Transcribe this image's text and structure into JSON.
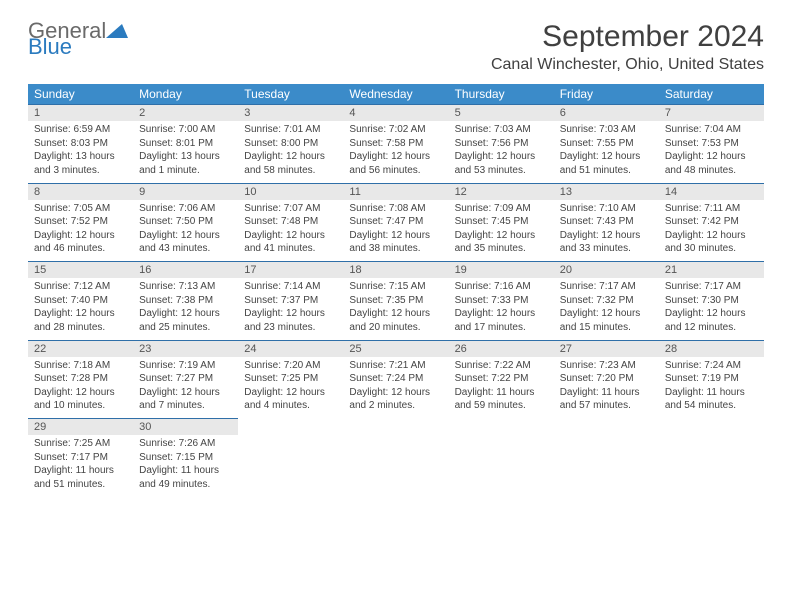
{
  "brand": {
    "part1": "General",
    "part2": "Blue"
  },
  "title": "September 2024",
  "location": "Canal Winchester, Ohio, United States",
  "header_bg": "#3b8bc9",
  "daynum_bg": "#e8e8e8",
  "border_color": "#2f6fa8",
  "weekdays": [
    "Sunday",
    "Monday",
    "Tuesday",
    "Wednesday",
    "Thursday",
    "Friday",
    "Saturday"
  ],
  "weeks": [
    [
      {
        "n": "1",
        "sr": "6:59 AM",
        "ss": "8:03 PM",
        "dl": "13 hours and 3 minutes."
      },
      {
        "n": "2",
        "sr": "7:00 AM",
        "ss": "8:01 PM",
        "dl": "13 hours and 1 minute."
      },
      {
        "n": "3",
        "sr": "7:01 AM",
        "ss": "8:00 PM",
        "dl": "12 hours and 58 minutes."
      },
      {
        "n": "4",
        "sr": "7:02 AM",
        "ss": "7:58 PM",
        "dl": "12 hours and 56 minutes."
      },
      {
        "n": "5",
        "sr": "7:03 AM",
        "ss": "7:56 PM",
        "dl": "12 hours and 53 minutes."
      },
      {
        "n": "6",
        "sr": "7:03 AM",
        "ss": "7:55 PM",
        "dl": "12 hours and 51 minutes."
      },
      {
        "n": "7",
        "sr": "7:04 AM",
        "ss": "7:53 PM",
        "dl": "12 hours and 48 minutes."
      }
    ],
    [
      {
        "n": "8",
        "sr": "7:05 AM",
        "ss": "7:52 PM",
        "dl": "12 hours and 46 minutes."
      },
      {
        "n": "9",
        "sr": "7:06 AM",
        "ss": "7:50 PM",
        "dl": "12 hours and 43 minutes."
      },
      {
        "n": "10",
        "sr": "7:07 AM",
        "ss": "7:48 PM",
        "dl": "12 hours and 41 minutes."
      },
      {
        "n": "11",
        "sr": "7:08 AM",
        "ss": "7:47 PM",
        "dl": "12 hours and 38 minutes."
      },
      {
        "n": "12",
        "sr": "7:09 AM",
        "ss": "7:45 PM",
        "dl": "12 hours and 35 minutes."
      },
      {
        "n": "13",
        "sr": "7:10 AM",
        "ss": "7:43 PM",
        "dl": "12 hours and 33 minutes."
      },
      {
        "n": "14",
        "sr": "7:11 AM",
        "ss": "7:42 PM",
        "dl": "12 hours and 30 minutes."
      }
    ],
    [
      {
        "n": "15",
        "sr": "7:12 AM",
        "ss": "7:40 PM",
        "dl": "12 hours and 28 minutes."
      },
      {
        "n": "16",
        "sr": "7:13 AM",
        "ss": "7:38 PM",
        "dl": "12 hours and 25 minutes."
      },
      {
        "n": "17",
        "sr": "7:14 AM",
        "ss": "7:37 PM",
        "dl": "12 hours and 23 minutes."
      },
      {
        "n": "18",
        "sr": "7:15 AM",
        "ss": "7:35 PM",
        "dl": "12 hours and 20 minutes."
      },
      {
        "n": "19",
        "sr": "7:16 AM",
        "ss": "7:33 PM",
        "dl": "12 hours and 17 minutes."
      },
      {
        "n": "20",
        "sr": "7:17 AM",
        "ss": "7:32 PM",
        "dl": "12 hours and 15 minutes."
      },
      {
        "n": "21",
        "sr": "7:17 AM",
        "ss": "7:30 PM",
        "dl": "12 hours and 12 minutes."
      }
    ],
    [
      {
        "n": "22",
        "sr": "7:18 AM",
        "ss": "7:28 PM",
        "dl": "12 hours and 10 minutes."
      },
      {
        "n": "23",
        "sr": "7:19 AM",
        "ss": "7:27 PM",
        "dl": "12 hours and 7 minutes."
      },
      {
        "n": "24",
        "sr": "7:20 AM",
        "ss": "7:25 PM",
        "dl": "12 hours and 4 minutes."
      },
      {
        "n": "25",
        "sr": "7:21 AM",
        "ss": "7:24 PM",
        "dl": "12 hours and 2 minutes."
      },
      {
        "n": "26",
        "sr": "7:22 AM",
        "ss": "7:22 PM",
        "dl": "11 hours and 59 minutes."
      },
      {
        "n": "27",
        "sr": "7:23 AM",
        "ss": "7:20 PM",
        "dl": "11 hours and 57 minutes."
      },
      {
        "n": "28",
        "sr": "7:24 AM",
        "ss": "7:19 PM",
        "dl": "11 hours and 54 minutes."
      }
    ],
    [
      {
        "n": "29",
        "sr": "7:25 AM",
        "ss": "7:17 PM",
        "dl": "11 hours and 51 minutes."
      },
      {
        "n": "30",
        "sr": "7:26 AM",
        "ss": "7:15 PM",
        "dl": "11 hours and 49 minutes."
      },
      null,
      null,
      null,
      null,
      null
    ]
  ]
}
